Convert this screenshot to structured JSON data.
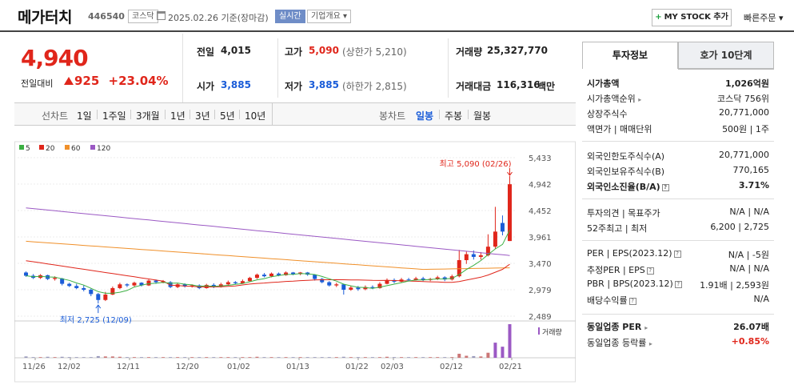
{
  "header": {
    "name": "메가터치",
    "code": "446540",
    "market_badge": "코스닥",
    "date_text": "2025.02.26 기준(장마감)",
    "realtime_badge": "실시간",
    "company_badge": "기업개요 ▾",
    "mystock_label": "MY STOCK 추가",
    "mystock_plus": "+",
    "quick_order": "빠른주문 ▾"
  },
  "price": {
    "current": "4,940",
    "prev_compare_label": "전일대비",
    "change_amount": "925",
    "change_rate": "+23.04%"
  },
  "summary": {
    "prev_label": "전일",
    "prev_value": "4,015",
    "high_label": "고가",
    "high_value": "5,090",
    "high_sub": "(상한가 5,210)",
    "volume_label": "거래량",
    "volume_value": "25,327,770",
    "open_label": "시가",
    "open_value": "3,885",
    "low_label": "저가",
    "low_value": "3,885",
    "low_sub": "(하한가 2,815)",
    "amount_label": "거래대금",
    "amount_value": "116,316",
    "amount_unit": "백만"
  },
  "period_bar": {
    "line_label": "선차트",
    "line_items": [
      "1일",
      "1주일",
      "3개월",
      "1년",
      "3년",
      "5년",
      "10년"
    ],
    "candle_label": "봉차트",
    "candle_items": [
      "일봉",
      "주봉",
      "월봉"
    ],
    "candle_active": "일봉"
  },
  "chart_data": {
    "type": "candlestick",
    "legend": [
      {
        "name": "5",
        "color": "#3cb043"
      },
      {
        "name": "20",
        "color": "#e0261b"
      },
      {
        "name": "60",
        "color": "#f0902a"
      },
      {
        "name": "120",
        "color": "#9b59c4"
      }
    ],
    "y_ticks": [
      "5,433",
      "4,942",
      "4,452",
      "3,961",
      "3,470",
      "2,979",
      "2,489"
    ],
    "ylim": [
      2489,
      5433
    ],
    "x_ticks": [
      "11/26",
      "12/02",
      "12/11",
      "12/20",
      "01/02",
      "01/13",
      "01/22",
      "02/03",
      "02/12",
      "02/21"
    ],
    "high_annotation": "최고 5,090 (02/26)",
    "low_annotation": "최저 2,725 (12/09)",
    "volume_label": "거래량",
    "candles": [
      {
        "o": 3300,
        "c": 3240,
        "h": 3320,
        "l": 3220
      },
      {
        "o": 3240,
        "c": 3200,
        "h": 3270,
        "l": 3180
      },
      {
        "o": 3200,
        "c": 3250,
        "h": 3270,
        "l": 3180
      },
      {
        "o": 3250,
        "c": 3180,
        "h": 3260,
        "l": 3160
      },
      {
        "o": 3180,
        "c": 3200,
        "h": 3230,
        "l": 3150
      },
      {
        "o": 3190,
        "c": 3090,
        "h": 3200,
        "l": 3060
      },
      {
        "o": 3090,
        "c": 3050,
        "h": 3110,
        "l": 3030
      },
      {
        "o": 3050,
        "c": 3010,
        "h": 3090,
        "l": 2990
      },
      {
        "o": 3010,
        "c": 2980,
        "h": 3060,
        "l": 2950
      },
      {
        "o": 2980,
        "c": 2900,
        "h": 3000,
        "l": 2860
      },
      {
        "o": 2900,
        "c": 2790,
        "h": 2920,
        "l": 2725
      },
      {
        "o": 2790,
        "c": 2890,
        "h": 2940,
        "l": 2770
      },
      {
        "o": 2890,
        "c": 3010,
        "h": 3040,
        "l": 2880
      },
      {
        "o": 3010,
        "c": 3080,
        "h": 3110,
        "l": 2990
      },
      {
        "o": 3080,
        "c": 3060,
        "h": 3100,
        "l": 3030
      },
      {
        "o": 3060,
        "c": 3110,
        "h": 3130,
        "l": 3040
      },
      {
        "o": 3110,
        "c": 3060,
        "h": 3120,
        "l": 3040
      },
      {
        "o": 3060,
        "c": 3150,
        "h": 3170,
        "l": 3050
      },
      {
        "o": 3150,
        "c": 3120,
        "h": 3170,
        "l": 3090
      },
      {
        "o": 3120,
        "c": 3140,
        "h": 3160,
        "l": 3100
      },
      {
        "o": 3120,
        "c": 3030,
        "h": 3140,
        "l": 3010
      },
      {
        "o": 3030,
        "c": 3080,
        "h": 3100,
        "l": 3010
      },
      {
        "o": 3080,
        "c": 3040,
        "h": 3100,
        "l": 3020
      },
      {
        "o": 3040,
        "c": 3060,
        "h": 3080,
        "l": 3020
      },
      {
        "o": 3060,
        "c": 3010,
        "h": 3080,
        "l": 2990
      },
      {
        "o": 3010,
        "c": 3070,
        "h": 3090,
        "l": 3000
      },
      {
        "o": 3070,
        "c": 3030,
        "h": 3100,
        "l": 3010
      },
      {
        "o": 3030,
        "c": 3080,
        "h": 3110,
        "l": 3020
      },
      {
        "o": 3080,
        "c": 3120,
        "h": 3150,
        "l": 3060
      },
      {
        "o": 3120,
        "c": 3100,
        "h": 3140,
        "l": 3080
      },
      {
        "o": 3100,
        "c": 3140,
        "h": 3170,
        "l": 3090
      },
      {
        "o": 3140,
        "c": 3200,
        "h": 3220,
        "l": 3130
      },
      {
        "o": 3200,
        "c": 3260,
        "h": 3280,
        "l": 3180
      },
      {
        "o": 3260,
        "c": 3230,
        "h": 3290,
        "l": 3210
      },
      {
        "o": 3230,
        "c": 3280,
        "h": 3300,
        "l": 3210
      },
      {
        "o": 3280,
        "c": 3250,
        "h": 3300,
        "l": 3230
      },
      {
        "o": 3250,
        "c": 3300,
        "h": 3320,
        "l": 3240
      },
      {
        "o": 3300,
        "c": 3270,
        "h": 3310,
        "l": 3250
      },
      {
        "o": 3270,
        "c": 3300,
        "h": 3310,
        "l": 3250
      },
      {
        "o": 3300,
        "c": 3260,
        "h": 3310,
        "l": 3240
      },
      {
        "o": 3260,
        "c": 3180,
        "h": 3270,
        "l": 3150
      },
      {
        "o": 3180,
        "c": 3120,
        "h": 3200,
        "l": 3100
      },
      {
        "o": 3120,
        "c": 3060,
        "h": 3140,
        "l": 3040
      },
      {
        "o": 3060,
        "c": 3080,
        "h": 3110,
        "l": 3030
      },
      {
        "o": 3080,
        "c": 2980,
        "h": 3090,
        "l": 2890
      },
      {
        "o": 2980,
        "c": 3020,
        "h": 3050,
        "l": 2960
      },
      {
        "o": 3020,
        "c": 2990,
        "h": 3050,
        "l": 2960
      },
      {
        "o": 2990,
        "c": 3030,
        "h": 3060,
        "l": 2970
      },
      {
        "o": 3030,
        "c": 3010,
        "h": 3060,
        "l": 2990
      },
      {
        "o": 3010,
        "c": 3090,
        "h": 3120,
        "l": 3000
      },
      {
        "o": 3090,
        "c": 3160,
        "h": 3190,
        "l": 3080
      },
      {
        "o": 3160,
        "c": 3130,
        "h": 3190,
        "l": 3100
      },
      {
        "o": 3130,
        "c": 3170,
        "h": 3200,
        "l": 3110
      },
      {
        "o": 3170,
        "c": 3160,
        "h": 3200,
        "l": 3140
      },
      {
        "o": 3160,
        "c": 3190,
        "h": 3220,
        "l": 3150
      },
      {
        "o": 3190,
        "c": 3160,
        "h": 3220,
        "l": 3140
      },
      {
        "o": 3160,
        "c": 3180,
        "h": 3200,
        "l": 3140
      },
      {
        "o": 3180,
        "c": 3210,
        "h": 3240,
        "l": 3160
      },
      {
        "o": 3210,
        "c": 3170,
        "h": 3230,
        "l": 3140
      },
      {
        "o": 3170,
        "c": 3230,
        "h": 3260,
        "l": 3150
      },
      {
        "o": 3230,
        "c": 3530,
        "h": 3720,
        "l": 3210
      },
      {
        "o": 3530,
        "c": 3640,
        "h": 3690,
        "l": 3460
      },
      {
        "o": 3640,
        "c": 3590,
        "h": 3710,
        "l": 3540
      },
      {
        "o": 3590,
        "c": 3620,
        "h": 3680,
        "l": 3540
      },
      {
        "o": 3620,
        "c": 3780,
        "h": 4010,
        "l": 3600
      },
      {
        "o": 3780,
        "c": 4060,
        "h": 4520,
        "l": 3740
      },
      {
        "o": 4220,
        "c": 4060,
        "h": 4360,
        "l": 3990
      },
      {
        "o": 3885,
        "c": 4940,
        "h": 5090,
        "l": 3885
      }
    ],
    "volumes": [
      4,
      2,
      2,
      3,
      2,
      3,
      2,
      2,
      2,
      2,
      5,
      4,
      4,
      3,
      2,
      2,
      2,
      2,
      2,
      2,
      2,
      2,
      2,
      2,
      2,
      2,
      2,
      2,
      2,
      2,
      2,
      2,
      3,
      2,
      2,
      2,
      2,
      2,
      2,
      2,
      2,
      2,
      2,
      2,
      3,
      2,
      2,
      2,
      2,
      2,
      3,
      2,
      2,
      2,
      2,
      2,
      2,
      2,
      2,
      2,
      12,
      6,
      5,
      4,
      15,
      45,
      33,
      100
    ]
  },
  "right_panel": {
    "tab_invest": "투자정보",
    "tab_order": "호가 10단계",
    "rows": {
      "market_cap_label": "시가총액",
      "market_cap_value": "1,026억원",
      "rank_label": "시가총액순위",
      "rank_value": "코스닥 756위",
      "shares_label": "상장주식수",
      "shares_value": "20,771,000",
      "par_label": "액면가 | 매매단위",
      "par_value": "500원 | 1주",
      "foreign_limit_label": "외국인한도주식수(A)",
      "foreign_limit_value": "20,771,000",
      "foreign_hold_label": "외국인보유주식수(B)",
      "foreign_hold_value": "770,165",
      "foreign_rate_label": "외국인소진율(B/A)",
      "foreign_rate_value": "3.71%",
      "opinion_label": "투자의견 | 목표주가",
      "opinion_value": "N/A | N/A",
      "week52_label": "52주최고 | 최저",
      "week52_value": "6,200 | 2,725",
      "per_label": "PER | EPS(2023.12)",
      "per_value": "N/A | -5원",
      "est_per_label": "추정PER | EPS",
      "est_per_value": "N/A | N/A",
      "pbr_label": "PBR | BPS(2023.12)",
      "pbr_value": "1.91배 | 2,593원",
      "div_label": "배당수익률",
      "div_value": "N/A",
      "sector_per_label": "동일업종 PER",
      "sector_per_value": "26.07배",
      "sector_rate_label": "동일업종 등락률",
      "sector_rate_value": "+0.85%"
    }
  }
}
